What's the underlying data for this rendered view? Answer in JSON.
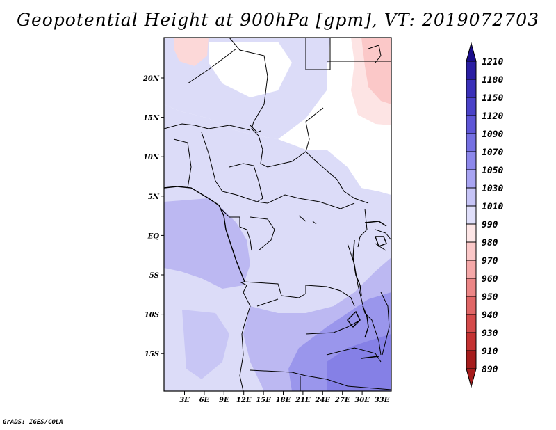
{
  "title": "Geopotential Height at 900hPa [gpm], VT: 2019072703",
  "credit": "GrADS: IGES/COLA",
  "map": {
    "lon_ticks": [
      "3E",
      "6E",
      "9E",
      "12E",
      "15E",
      "18E",
      "21E",
      "24E",
      "27E",
      "30E",
      "33E"
    ],
    "lat_ticks": [
      "20N",
      "15N",
      "10N",
      "5N",
      "EQ",
      "5S",
      "10S",
      "15S"
    ]
  },
  "colorbar": {
    "labels": [
      "1210",
      "1180",
      "1150",
      "1120",
      "1090",
      "1070",
      "1050",
      "1030",
      "1010",
      "990",
      "980",
      "970",
      "960",
      "950",
      "940",
      "930",
      "910",
      "890"
    ],
    "colors": [
      "#1a0d8a",
      "#2a1ea3",
      "#3a30b8",
      "#4a42c8",
      "#5e56d6",
      "#7570e2",
      "#8d88eb",
      "#a8a4f2",
      "#c6c4f6",
      "#e0dffa",
      "#fde6e6",
      "#fbc8c8",
      "#f5a8a8",
      "#ec8686",
      "#e06666",
      "#d44a4a",
      "#c43232",
      "#a61c1c"
    ]
  }
}
